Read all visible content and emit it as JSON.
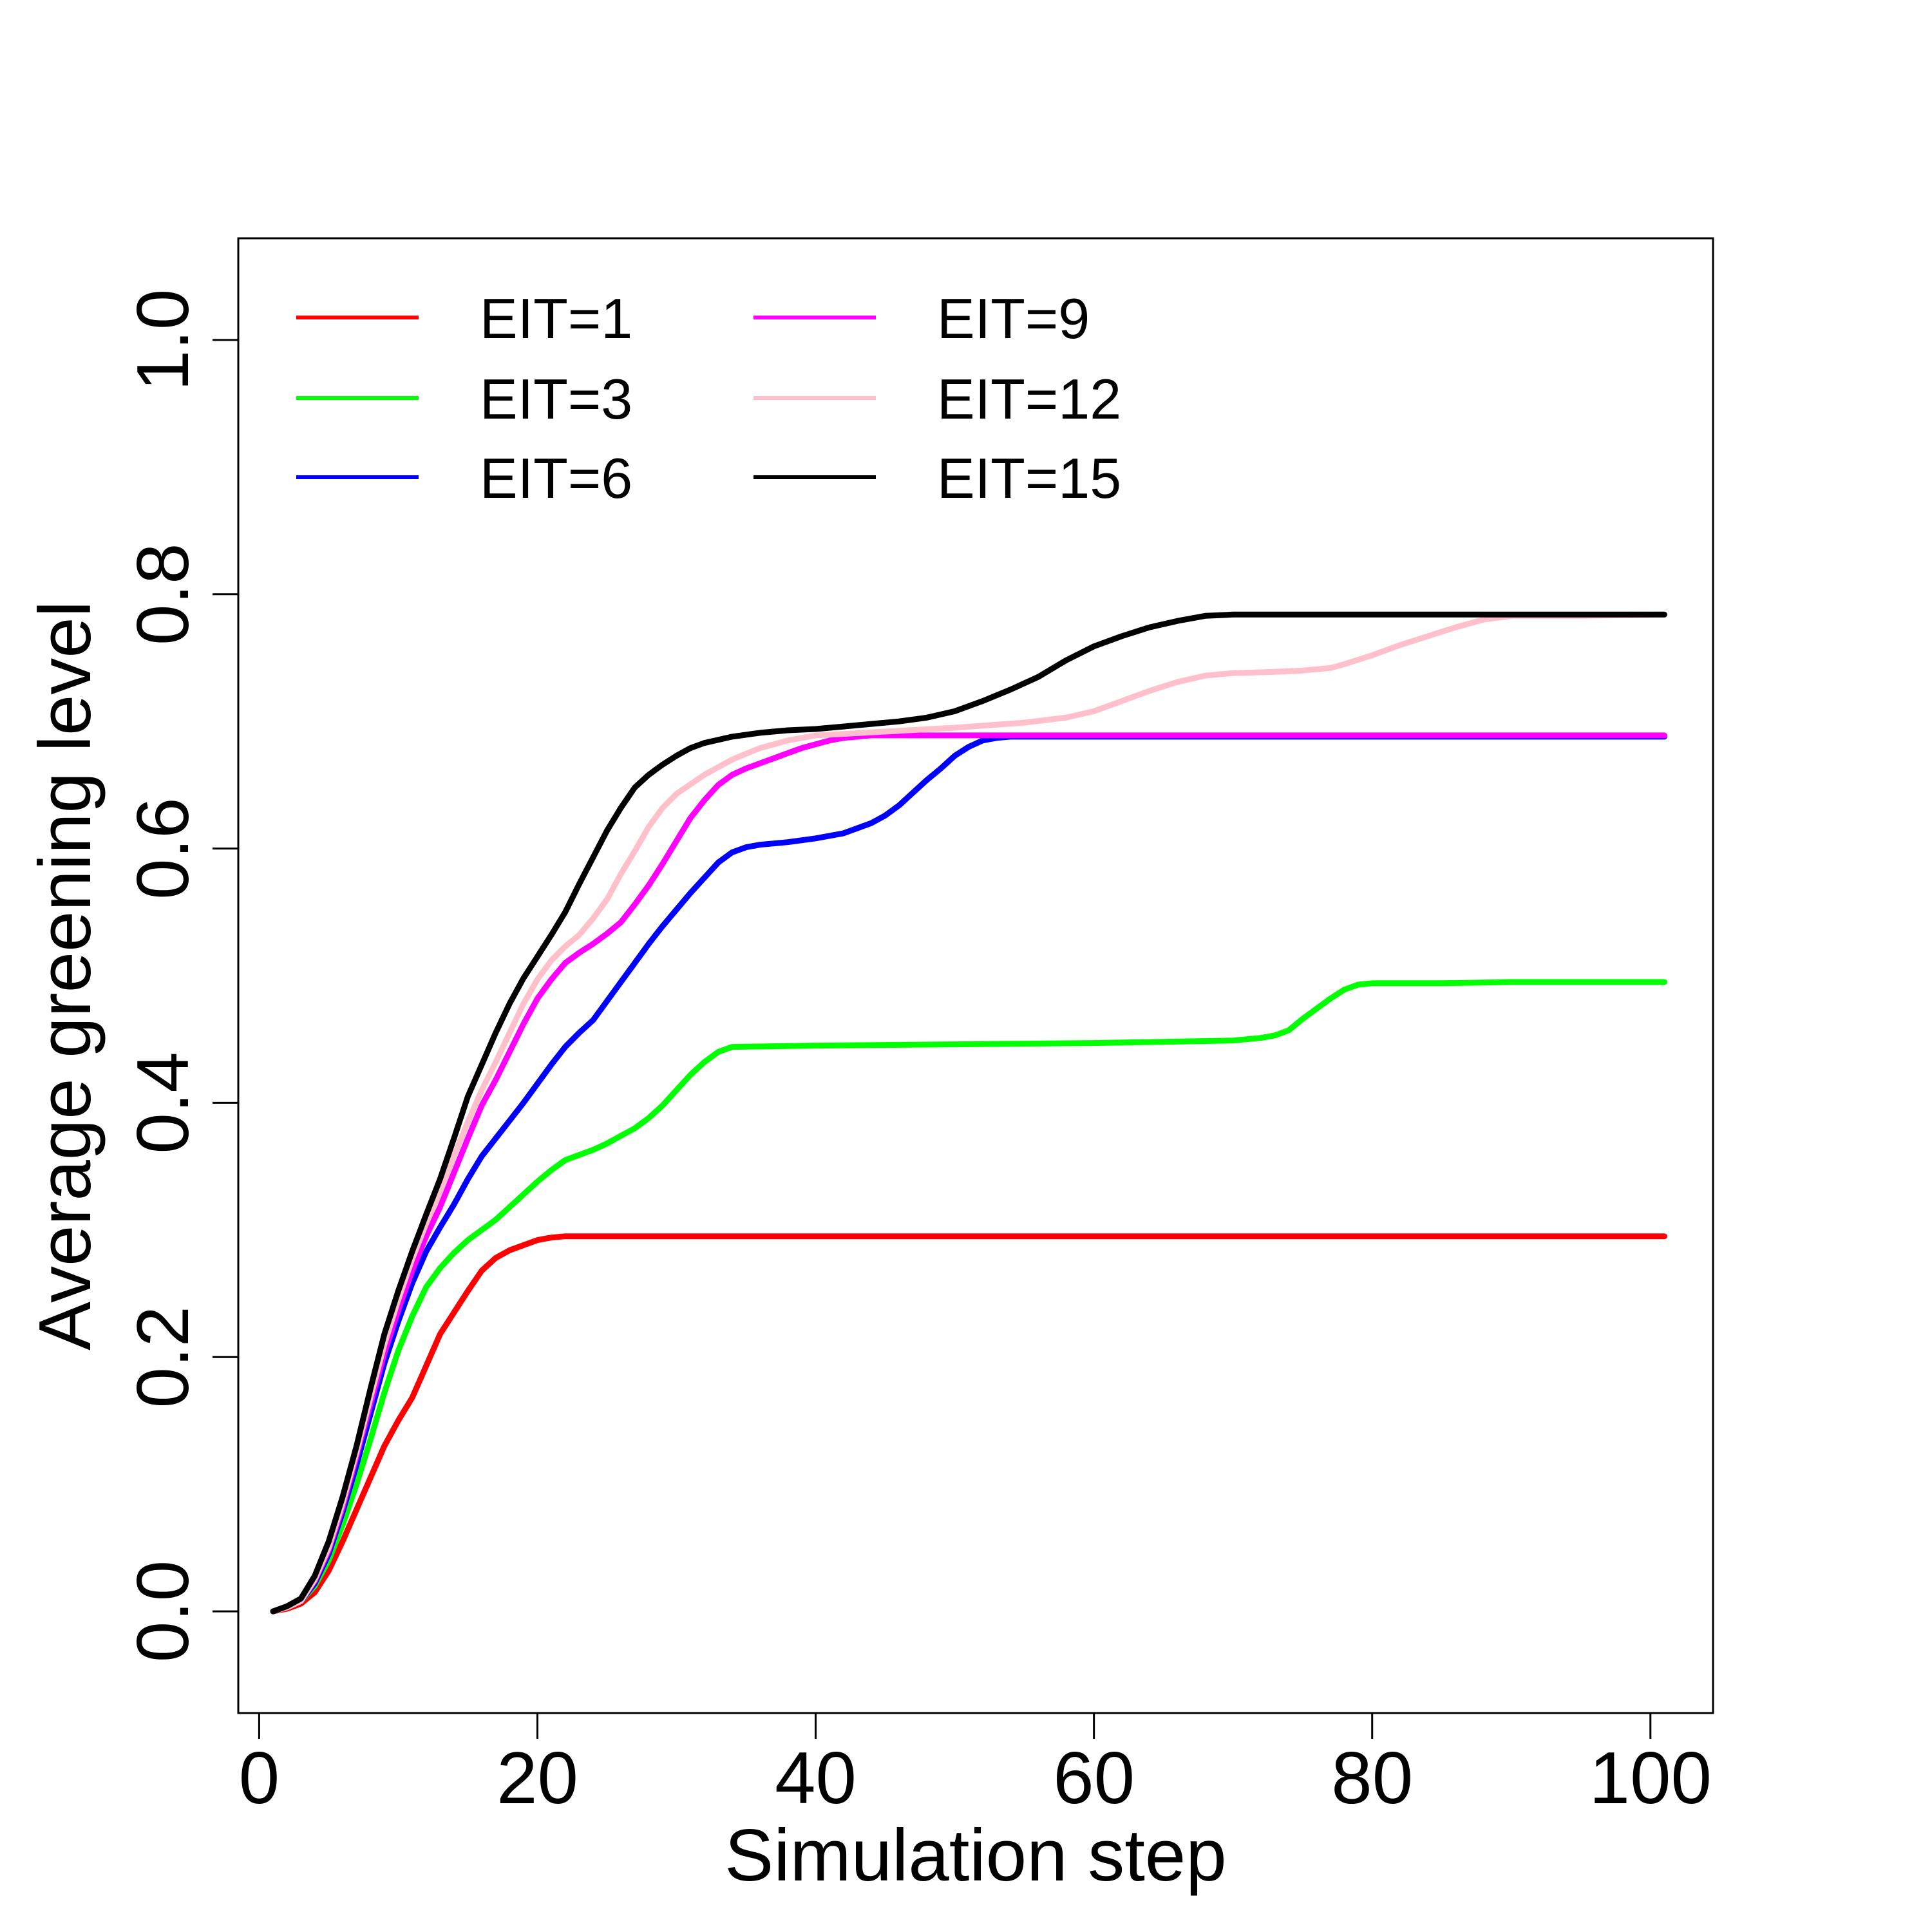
{
  "chart_data": {
    "type": "line",
    "title": "",
    "xlabel": "Simulation step",
    "ylabel": "Average greening level",
    "xlim": [
      -1.5,
      104.5
    ],
    "ylim": [
      -0.08,
      1.08
    ],
    "xticks": [
      0,
      20,
      40,
      60,
      80,
      100
    ],
    "yticks": [
      0.0,
      0.2,
      0.4,
      0.6,
      0.8,
      1.0
    ],
    "xtick_labels": [
      "0",
      "20",
      "40",
      "60",
      "80",
      "100"
    ],
    "ytick_labels": [
      "0.0",
      "0.2",
      "0.4",
      "0.6",
      "0.8",
      "1.0"
    ],
    "grid": false,
    "legend_position": "top-left",
    "series": [
      {
        "name": "EIT=1",
        "color": "#ff0000",
        "x": [
          1,
          2,
          3,
          4,
          5,
          6,
          7,
          8,
          9,
          10,
          11,
          12,
          13,
          14,
          15,
          16,
          17,
          18,
          19,
          20,
          21,
          22,
          30,
          40,
          50,
          60,
          70,
          80,
          90,
          101
        ],
        "y": [
          0.0,
          0.002,
          0.006,
          0.015,
          0.032,
          0.055,
          0.08,
          0.105,
          0.13,
          0.15,
          0.168,
          0.193,
          0.218,
          0.235,
          0.252,
          0.268,
          0.278,
          0.284,
          0.288,
          0.292,
          0.294,
          0.295,
          0.295,
          0.295,
          0.295,
          0.295,
          0.295,
          0.295,
          0.295,
          0.295
        ]
      },
      {
        "name": "EIT=3",
        "color": "#00ff00",
        "x": [
          1,
          2,
          3,
          4,
          5,
          6,
          7,
          8,
          9,
          10,
          11,
          12,
          13,
          14,
          15,
          16,
          17,
          18,
          19,
          20,
          21,
          22,
          23,
          24,
          25,
          26,
          27,
          28,
          29,
          30,
          31,
          32,
          33,
          34,
          40,
          50,
          60,
          65,
          70,
          72,
          73,
          74,
          75,
          76,
          77,
          78,
          79,
          80,
          85,
          90,
          101
        ],
        "y": [
          0.0,
          0.003,
          0.008,
          0.02,
          0.04,
          0.068,
          0.1,
          0.135,
          0.172,
          0.205,
          0.232,
          0.255,
          0.27,
          0.282,
          0.292,
          0.3,
          0.308,
          0.318,
          0.328,
          0.338,
          0.347,
          0.355,
          0.359,
          0.363,
          0.368,
          0.374,
          0.38,
          0.388,
          0.398,
          0.41,
          0.422,
          0.432,
          0.44,
          0.444,
          0.445,
          0.446,
          0.447,
          0.448,
          0.449,
          0.451,
          0.453,
          0.457,
          0.466,
          0.474,
          0.482,
          0.489,
          0.493,
          0.494,
          0.494,
          0.495,
          0.495
        ]
      },
      {
        "name": "EIT=6",
        "color": "#0000ff",
        "x": [
          1,
          2,
          3,
          4,
          5,
          6,
          7,
          8,
          9,
          10,
          11,
          12,
          13,
          14,
          15,
          16,
          17,
          18,
          19,
          20,
          21,
          22,
          23,
          24,
          25,
          26,
          27,
          28,
          29,
          30,
          31,
          32,
          33,
          34,
          35,
          36,
          37,
          38,
          40,
          42,
          44,
          45,
          46,
          47,
          48,
          49,
          50,
          51,
          52,
          53,
          54,
          60,
          70,
          80,
          90,
          101
        ],
        "y": [
          0.0,
          0.003,
          0.008,
          0.022,
          0.045,
          0.078,
          0.115,
          0.155,
          0.195,
          0.228,
          0.258,
          0.283,
          0.302,
          0.32,
          0.34,
          0.358,
          0.372,
          0.386,
          0.4,
          0.415,
          0.43,
          0.444,
          0.455,
          0.465,
          0.48,
          0.495,
          0.51,
          0.525,
          0.539,
          0.552,
          0.565,
          0.577,
          0.589,
          0.597,
          0.601,
          0.603,
          0.604,
          0.605,
          0.608,
          0.612,
          0.62,
          0.626,
          0.634,
          0.644,
          0.654,
          0.663,
          0.673,
          0.68,
          0.685,
          0.687,
          0.688,
          0.688,
          0.688,
          0.688,
          0.688,
          0.688
        ]
      },
      {
        "name": "EIT=9",
        "color": "#ff00ff",
        "x": [
          1,
          2,
          3,
          4,
          5,
          6,
          7,
          8,
          9,
          10,
          11,
          12,
          13,
          14,
          15,
          16,
          17,
          18,
          19,
          20,
          21,
          22,
          23,
          24,
          25,
          26,
          27,
          28,
          29,
          30,
          31,
          32,
          33,
          34,
          35,
          36,
          37,
          38,
          39,
          40,
          41,
          42,
          43,
          44,
          45,
          50,
          60,
          70,
          80,
          90,
          101
        ],
        "y": [
          0.0,
          0.003,
          0.008,
          0.024,
          0.048,
          0.082,
          0.122,
          0.163,
          0.203,
          0.237,
          0.268,
          0.295,
          0.318,
          0.345,
          0.372,
          0.398,
          0.418,
          0.44,
          0.462,
          0.482,
          0.497,
          0.51,
          0.518,
          0.525,
          0.533,
          0.542,
          0.556,
          0.571,
          0.588,
          0.606,
          0.624,
          0.638,
          0.65,
          0.658,
          0.663,
          0.667,
          0.671,
          0.675,
          0.679,
          0.682,
          0.685,
          0.687,
          0.688,
          0.689,
          0.689,
          0.689,
          0.689,
          0.689,
          0.689,
          0.689,
          0.689
        ]
      },
      {
        "name": "EIT=12",
        "color": "#ffc0cb",
        "x": [
          1,
          2,
          3,
          4,
          5,
          6,
          7,
          8,
          9,
          10,
          11,
          12,
          13,
          14,
          15,
          16,
          17,
          18,
          19,
          20,
          21,
          22,
          23,
          24,
          25,
          26,
          27,
          28,
          29,
          30,
          32,
          34,
          36,
          38,
          40,
          45,
          50,
          55,
          58,
          60,
          62,
          64,
          66,
          68,
          70,
          73,
          75,
          77,
          78,
          80,
          82,
          84,
          86,
          88,
          90,
          95,
          101
        ],
        "y": [
          0.0,
          0.003,
          0.008,
          0.025,
          0.05,
          0.085,
          0.125,
          0.168,
          0.21,
          0.245,
          0.277,
          0.305,
          0.33,
          0.358,
          0.385,
          0.41,
          0.432,
          0.455,
          0.478,
          0.497,
          0.512,
          0.523,
          0.532,
          0.545,
          0.56,
          0.58,
          0.598,
          0.617,
          0.632,
          0.643,
          0.658,
          0.67,
          0.679,
          0.685,
          0.689,
          0.692,
          0.695,
          0.699,
          0.703,
          0.708,
          0.716,
          0.724,
          0.731,
          0.736,
          0.738,
          0.739,
          0.74,
          0.742,
          0.745,
          0.752,
          0.76,
          0.767,
          0.774,
          0.78,
          0.783,
          0.783,
          0.784
        ]
      },
      {
        "name": "EIT=15",
        "color": "#000000",
        "x": [
          1,
          2,
          3,
          4,
          5,
          6,
          7,
          8,
          9,
          10,
          11,
          12,
          13,
          14,
          15,
          16,
          17,
          18,
          19,
          20,
          21,
          22,
          23,
          24,
          25,
          26,
          27,
          28,
          29,
          30,
          31,
          32,
          34,
          36,
          38,
          40,
          42,
          44,
          46,
          48,
          50,
          52,
          54,
          56,
          58,
          60,
          62,
          64,
          66,
          68,
          70,
          80,
          90,
          101
        ],
        "y": [
          0.0,
          0.004,
          0.01,
          0.028,
          0.055,
          0.09,
          0.13,
          0.175,
          0.218,
          0.252,
          0.283,
          0.312,
          0.34,
          0.372,
          0.405,
          0.43,
          0.455,
          0.478,
          0.498,
          0.515,
          0.532,
          0.55,
          0.572,
          0.593,
          0.614,
          0.632,
          0.648,
          0.658,
          0.666,
          0.673,
          0.679,
          0.683,
          0.688,
          0.691,
          0.693,
          0.694,
          0.696,
          0.698,
          0.7,
          0.703,
          0.708,
          0.716,
          0.725,
          0.735,
          0.748,
          0.759,
          0.767,
          0.774,
          0.779,
          0.783,
          0.784,
          0.784,
          0.784,
          0.784
        ]
      }
    ]
  }
}
